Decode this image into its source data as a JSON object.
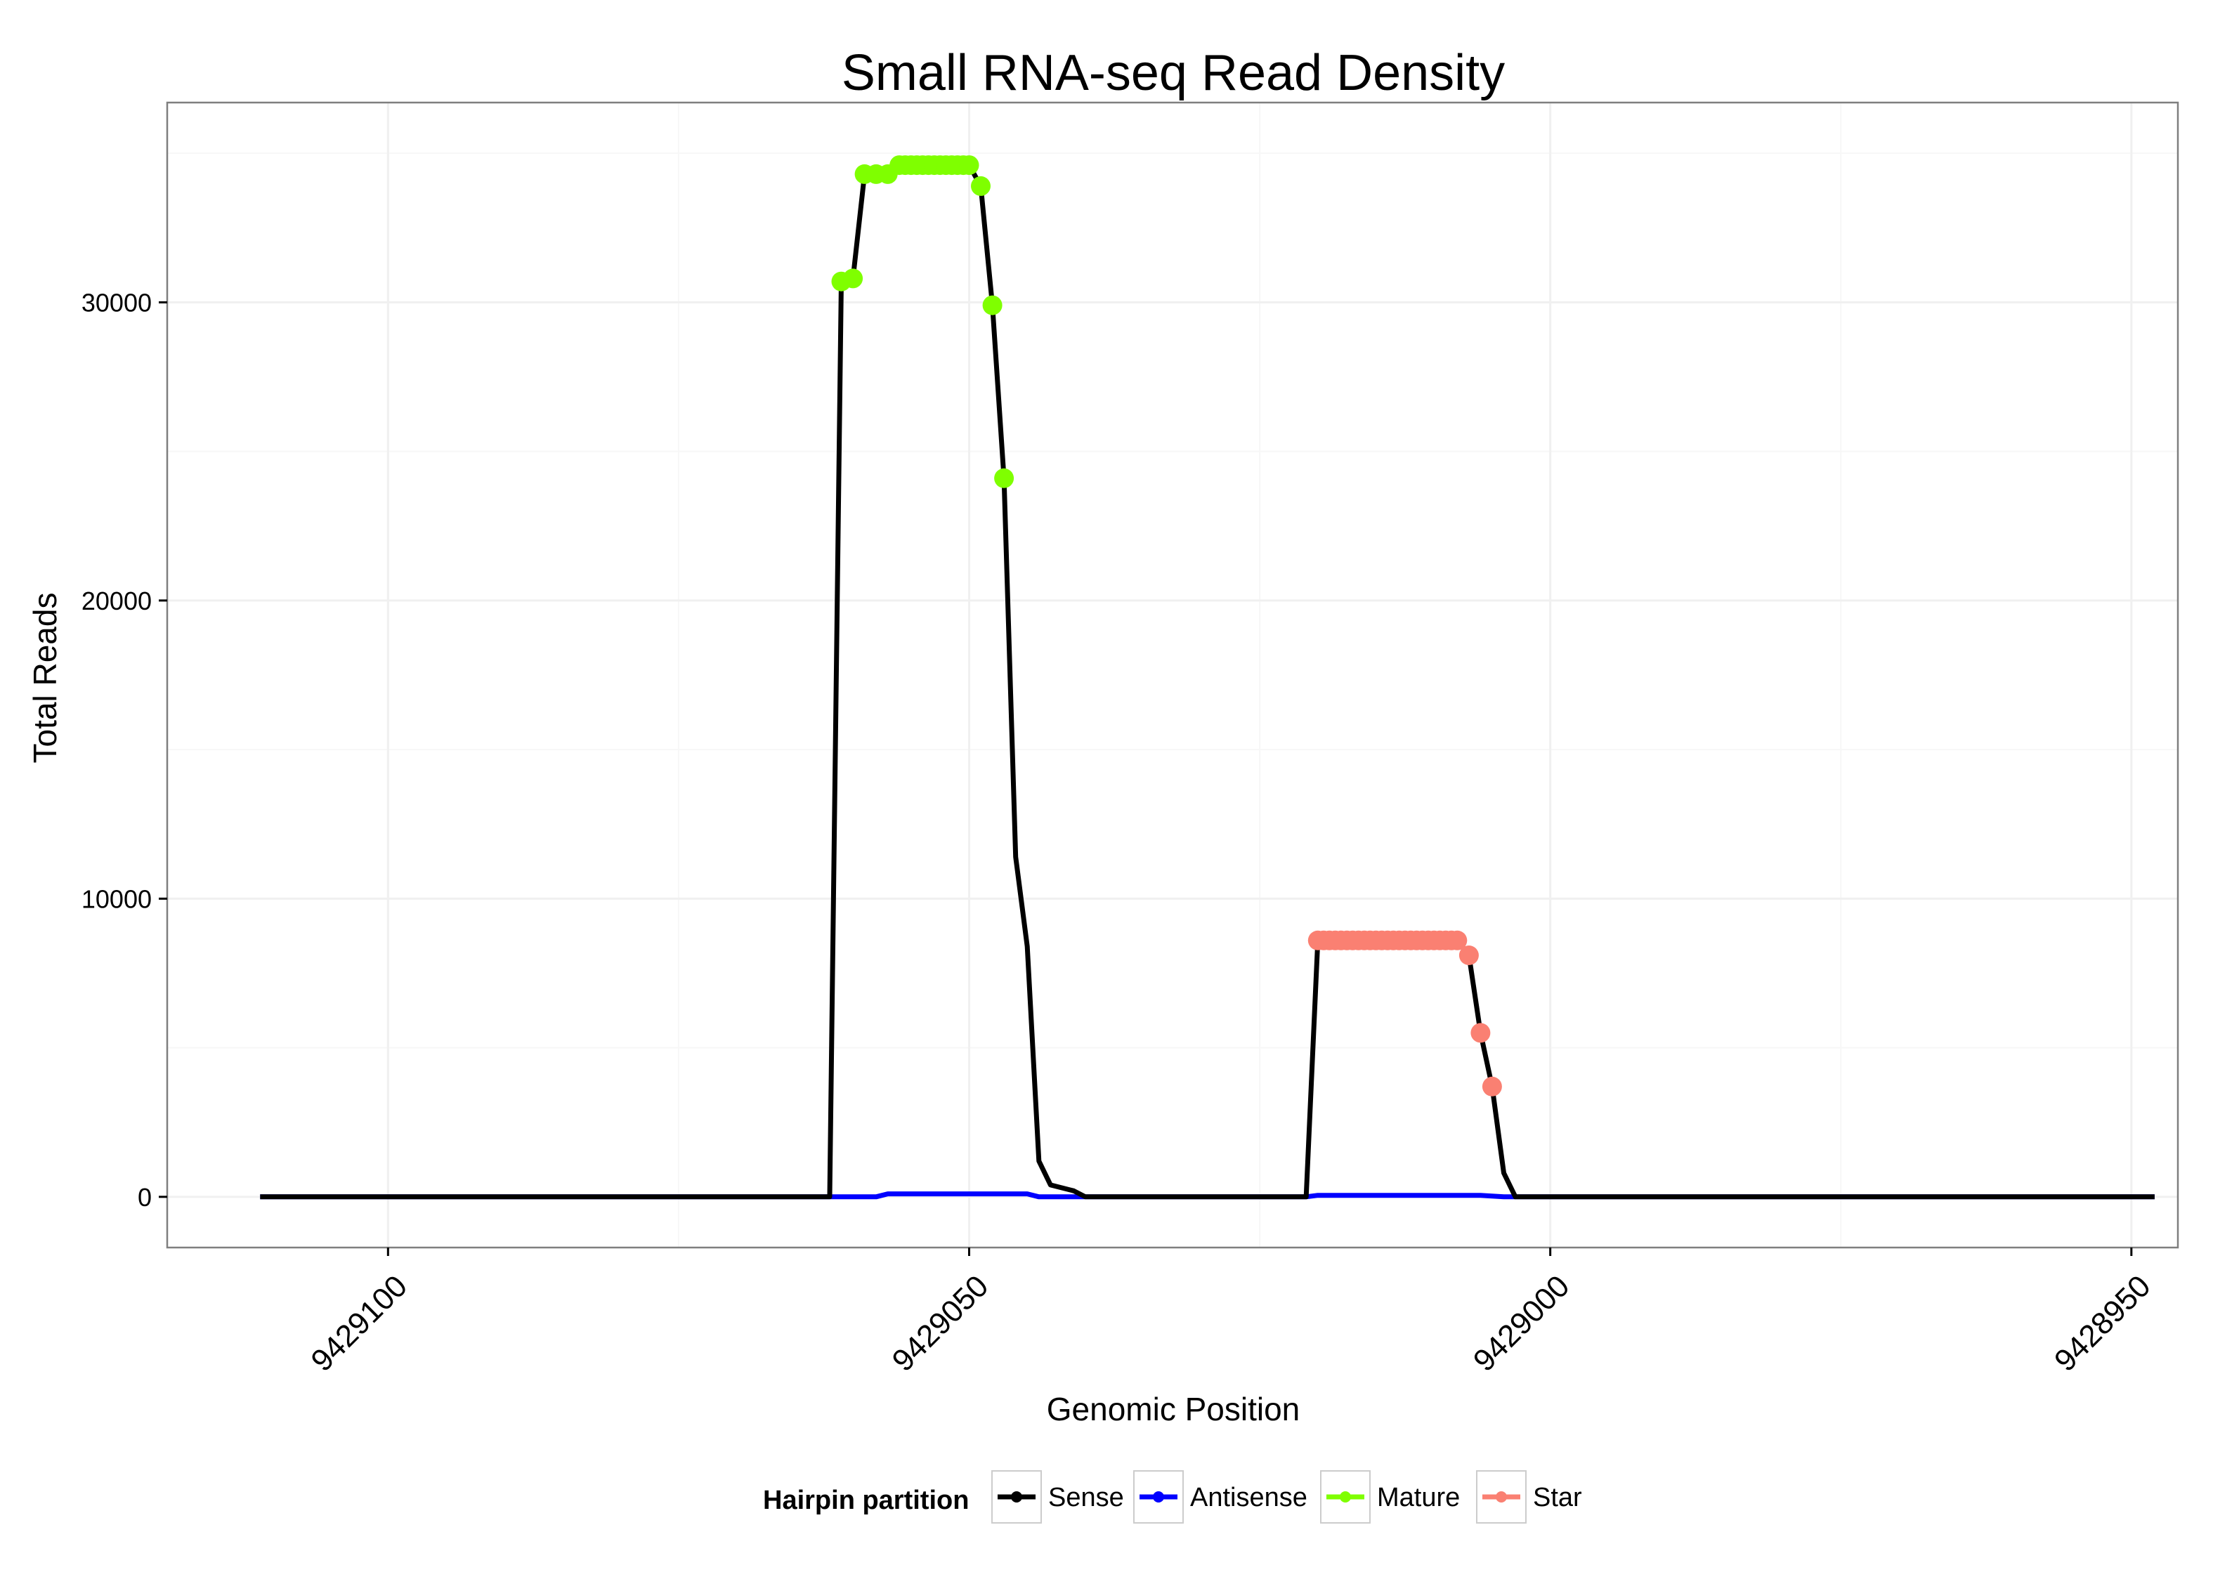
{
  "colors": {
    "sense": "#000000",
    "antisense": "#0000ff",
    "mature": "#7fff00",
    "star": "#fa8072",
    "panel_border": "#7f7f7f",
    "grid_major": "#f0f0f0",
    "grid_minor": "#f7f7f7"
  },
  "chart_data": {
    "type": "line",
    "title": "Small RNA-seq Read Density",
    "xlabel": "Genomic Position",
    "ylabel": "Total Reads",
    "x_reversed": true,
    "xlim": [
      9429119,
      9428946
    ],
    "ylim": [
      -1700,
      36700
    ],
    "x_ticks": [
      9429100,
      9429050,
      9429000,
      9428950
    ],
    "x_tick_labels": [
      "9429100",
      "9429050",
      "9429000",
      "9428950"
    ],
    "y_ticks": [
      0,
      10000,
      20000,
      30000
    ],
    "y_tick_labels": [
      "0",
      "10000",
      "20000",
      "30000"
    ],
    "grid": true,
    "legend": {
      "title": "Hairpin partition",
      "placement": "bottom",
      "entries": [
        "Sense",
        "Antisense",
        "Mature",
        "Star"
      ]
    },
    "series": [
      {
        "name": "Sense",
        "line": [
          [
            9429111,
            0
          ],
          [
            9429062,
            0
          ],
          [
            9429061,
            30700
          ],
          [
            9429060,
            30800
          ],
          [
            9429059,
            34300
          ],
          [
            9429058,
            34300
          ],
          [
            9429057,
            34300
          ],
          [
            9429056,
            34600
          ],
          [
            9429050,
            34600
          ],
          [
            9429049,
            33900
          ],
          [
            9429048,
            29900
          ],
          [
            9429047,
            24100
          ],
          [
            9429046,
            11400
          ],
          [
            9429045,
            8400
          ],
          [
            9429044,
            1200
          ],
          [
            9429043,
            400
          ],
          [
            9429041,
            200
          ],
          [
            9429040,
            0
          ],
          [
            9429021,
            0
          ],
          [
            9429020,
            8600
          ],
          [
            9429008,
            8600
          ],
          [
            9429007,
            8100
          ],
          [
            9429006,
            5500
          ],
          [
            9429005,
            3700
          ],
          [
            9429004,
            800
          ],
          [
            9429003,
            0
          ],
          [
            9428948,
            0
          ]
        ]
      },
      {
        "name": "Antisense",
        "line": [
          [
            9429111,
            0
          ],
          [
            9429058,
            0
          ],
          [
            9429057,
            100
          ],
          [
            9429045,
            100
          ],
          [
            9429044,
            0
          ],
          [
            9429021,
            0
          ],
          [
            9429020,
            50
          ],
          [
            9429006,
            50
          ],
          [
            9429004,
            0
          ],
          [
            9428948,
            0
          ]
        ]
      },
      {
        "name": "Mature",
        "points": [
          [
            9429061,
            30700
          ],
          [
            9429060,
            30800
          ],
          [
            9429059,
            34300
          ],
          [
            9429058,
            34300
          ],
          [
            9429057,
            34300
          ],
          [
            9429056,
            34600
          ],
          [
            9429055,
            34600
          ],
          [
            9429054,
            34600
          ],
          [
            9429053,
            34600
          ],
          [
            9429052,
            34600
          ],
          [
            9429051,
            34600
          ],
          [
            9429050,
            34600
          ],
          [
            9429049,
            33900
          ],
          [
            9429048,
            29900
          ],
          [
            9429047,
            24100
          ]
        ],
        "dense_x_range": [
          9429056,
          9429050
        ]
      },
      {
        "name": "Star",
        "points": [
          [
            9429020,
            8600
          ],
          [
            9429019,
            8600
          ],
          [
            9429018,
            8600
          ],
          [
            9429017,
            8600
          ],
          [
            9429016,
            8600
          ],
          [
            9429015,
            8600
          ],
          [
            9429014,
            8600
          ],
          [
            9429013,
            8600
          ],
          [
            9429012,
            8600
          ],
          [
            9429011,
            8600
          ],
          [
            9429010,
            8600
          ],
          [
            9429009,
            8600
          ],
          [
            9429008,
            8600
          ],
          [
            9429007,
            8100
          ],
          [
            9429006,
            5500
          ],
          [
            9429005,
            3700
          ]
        ],
        "dense_x_range": [
          9429020,
          9429008
        ]
      }
    ]
  }
}
